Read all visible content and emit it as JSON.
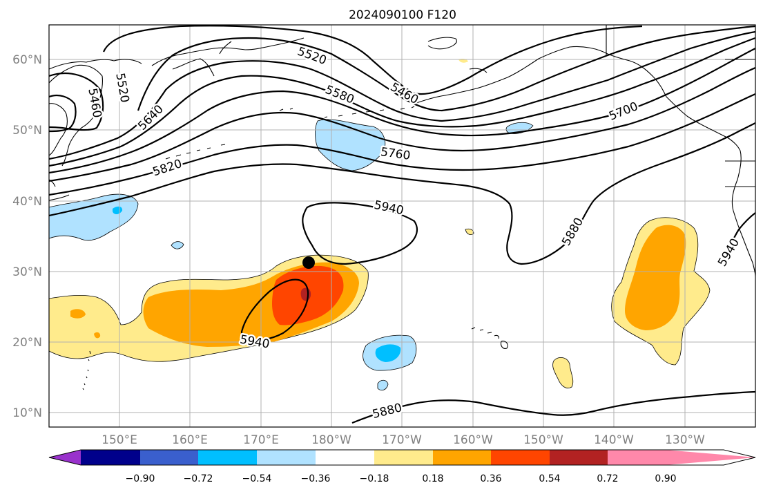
{
  "title": "2024090100 F120",
  "lat_labels": [
    "60°N",
    "50°N",
    "40°N",
    "30°N",
    "20°N",
    "10°N"
  ],
  "lon_labels": [
    "150°E",
    "160°E",
    "170°E",
    "180°W",
    "170°W",
    "160°W",
    "150°W",
    "140°W",
    "130°W"
  ],
  "contour_labels": [
    "5520",
    "5460",
    "5520",
    "5640",
    "5580",
    "5460",
    "5700",
    "5760",
    "5820",
    "5940",
    "5880",
    "5940",
    "5940",
    "5880"
  ],
  "colorbar": {
    "ticks": [
      "−0.90",
      "−0.72",
      "−0.54",
      "−0.36",
      "−0.18",
      "0.18",
      "0.36",
      "0.54",
      "0.72",
      "0.90"
    ],
    "colors": [
      "#9932cc",
      "#00008b",
      "#3a5fcd",
      "#00bfff",
      "#b0e2ff",
      "#ffffff",
      "#ffeb8c",
      "#ffa500",
      "#ff4500",
      "#b22222",
      "#ff88aa"
    ]
  },
  "anomaly_colors": {
    "light_yellow": "#ffeb8c",
    "orange": "#ffa500",
    "red_orange": "#ff4500",
    "dark_red": "#b22222",
    "light_blue": "#b0e2ff",
    "deep_sky_blue": "#00bfff"
  },
  "storm_marker": "black-dot"
}
